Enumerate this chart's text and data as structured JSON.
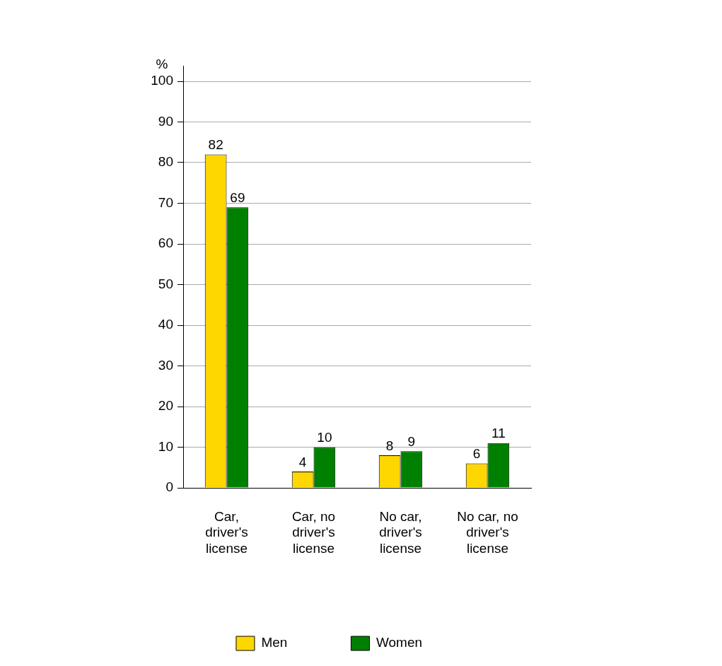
{
  "chart_data": {
    "type": "bar",
    "ylabel": "%",
    "categories": [
      "Car, driver's license",
      "Car, no driver's license",
      "No car, driver's license",
      "No car, no driver's license"
    ],
    "series": [
      {
        "name": "Men",
        "color": "#ffd700",
        "values": [
          82,
          4,
          8,
          6
        ]
      },
      {
        "name": "Women",
        "color": "#008000",
        "values": [
          69,
          10,
          9,
          11
        ]
      }
    ],
    "ylim": [
      0,
      100
    ],
    "yticks": [
      0,
      10,
      20,
      30,
      40,
      50,
      60,
      70,
      80,
      90,
      100
    ],
    "grid": "y",
    "legend": "bottom",
    "data_labels": true
  }
}
